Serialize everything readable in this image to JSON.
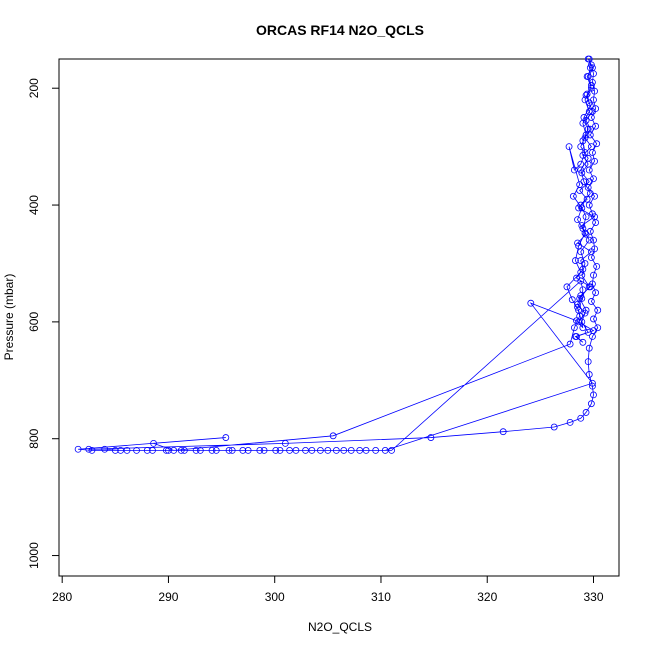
{
  "chart_data": {
    "type": "scatter",
    "title": "ORCAS RF14 N2O_QCLS",
    "xlabel": "N2O_QCLS",
    "ylabel": "Pressure (mbar)",
    "xlim": [
      279.7,
      332.4
    ],
    "ylim": [
      1035,
      150
    ],
    "y_reversed": true,
    "x_ticks": [
      280,
      290,
      300,
      310,
      320,
      330
    ],
    "y_ticks": [
      200,
      400,
      600,
      800,
      1000
    ],
    "grid": false,
    "legend": "none",
    "series_color": "#0000ff",
    "marker": "open-circle",
    "connected": true,
    "points": [
      [
        329.6,
        150
      ],
      [
        329.7,
        165
      ],
      [
        329.5,
        180
      ],
      [
        329.8,
        195
      ],
      [
        329.4,
        210
      ],
      [
        329.6,
        225
      ],
      [
        329.9,
        240
      ],
      [
        329.3,
        255
      ],
      [
        329.7,
        270
      ],
      [
        329.2,
        285
      ],
      [
        329.8,
        300
      ],
      [
        329.0,
        315
      ],
      [
        329.5,
        330
      ],
      [
        328.9,
        345
      ],
      [
        329.6,
        360
      ],
      [
        328.7,
        375
      ],
      [
        329.4,
        390
      ],
      [
        328.6,
        405
      ],
      [
        330.1,
        420
      ],
      [
        328.9,
        435
      ],
      [
        329.3,
        450
      ],
      [
        328.5,
        465
      ],
      [
        329.8,
        480
      ],
      [
        328.8,
        495
      ],
      [
        329.0,
        510
      ],
      [
        328.4,
        525
      ],
      [
        329.7,
        540
      ],
      [
        328.8,
        555
      ],
      [
        328.5,
        570
      ],
      [
        329.2,
        585
      ],
      [
        328.6,
        600
      ],
      [
        330.0,
        615
      ],
      [
        328.4,
        625
      ],
      [
        329.0,
        635
      ],
      [
        328.3,
        625
      ],
      [
        329.5,
        618
      ],
      [
        328.9,
        600
      ],
      [
        329.3,
        580
      ],
      [
        328.7,
        560
      ],
      [
        329.6,
        540
      ],
      [
        328.9,
        520
      ],
      [
        329.2,
        500
      ],
      [
        328.8,
        480
      ],
      [
        329.6,
        460
      ],
      [
        329.0,
        440
      ],
      [
        329.3,
        420
      ],
      [
        328.8,
        400
      ],
      [
        329.7,
        380
      ],
      [
        329.1,
        360
      ],
      [
        328.8,
        340
      ],
      [
        329.5,
        320
      ],
      [
        328.8,
        300
      ],
      [
        329.3,
        280
      ],
      [
        329.0,
        260
      ],
      [
        329.6,
        240
      ],
      [
        329.2,
        220
      ],
      [
        329.8,
        200
      ],
      [
        329.4,
        180
      ],
      [
        329.9,
        165
      ],
      [
        329.5,
        150
      ],
      [
        329.8,
        160
      ],
      [
        330.0,
        175
      ],
      [
        329.9,
        190
      ],
      [
        330.1,
        205
      ],
      [
        330.0,
        220
      ],
      [
        330.2,
        235
      ],
      [
        329.8,
        250
      ],
      [
        330.2,
        265
      ],
      [
        329.7,
        280
      ],
      [
        330.3,
        295
      ],
      [
        329.9,
        310
      ],
      [
        330.1,
        325
      ],
      [
        329.6,
        340
      ],
      [
        330.0,
        355
      ],
      [
        329.5,
        370
      ],
      [
        330.1,
        385
      ],
      [
        329.6,
        400
      ],
      [
        329.9,
        415
      ],
      [
        330.2,
        430
      ],
      [
        329.7,
        445
      ],
      [
        330.0,
        460
      ],
      [
        330.1,
        475
      ],
      [
        329.8,
        490
      ],
      [
        330.3,
        505
      ],
      [
        330.0,
        520
      ],
      [
        329.9,
        535
      ],
      [
        330.2,
        550
      ],
      [
        329.8,
        565
      ],
      [
        330.4,
        580
      ],
      [
        330.0,
        595
      ],
      [
        330.4,
        610
      ],
      [
        329.9,
        625
      ],
      [
        329.6,
        645
      ],
      [
        329.5,
        668
      ],
      [
        329.6,
        690
      ],
      [
        329.9,
        710
      ],
      [
        330.0,
        725
      ],
      [
        329.8,
        740
      ],
      [
        329.3,
        755
      ],
      [
        328.8,
        765
      ],
      [
        327.8,
        772
      ],
      [
        326.3,
        780
      ],
      [
        321.5,
        788
      ],
      [
        314.7,
        798
      ],
      [
        301.0,
        808
      ],
      [
        282.5,
        818
      ],
      [
        284.0,
        818
      ],
      [
        285.5,
        820
      ],
      [
        287.0,
        820
      ],
      [
        288.5,
        820
      ],
      [
        290.0,
        820
      ],
      [
        291.5,
        820
      ],
      [
        293.0,
        820
      ],
      [
        294.5,
        820
      ],
      [
        296.0,
        820
      ],
      [
        297.5,
        820
      ],
      [
        299.0,
        820
      ],
      [
        300.5,
        820
      ],
      [
        302.0,
        820
      ],
      [
        303.5,
        820
      ],
      [
        305.0,
        820
      ],
      [
        306.5,
        820
      ],
      [
        308.0,
        820
      ],
      [
        309.5,
        820
      ],
      [
        311.0,
        820
      ],
      [
        328.8,
        530
      ],
      [
        329.0,
        545
      ],
      [
        328.9,
        560
      ],
      [
        328.5,
        575
      ],
      [
        328.7,
        590
      ],
      [
        328.2,
        610
      ],
      [
        327.8,
        638
      ],
      [
        305.5,
        795
      ],
      [
        290.5,
        820
      ],
      [
        288.6,
        808
      ],
      [
        295.4,
        798
      ],
      [
        281.5,
        818
      ],
      [
        282.8,
        820
      ],
      [
        285.0,
        820
      ],
      [
        286.1,
        820
      ],
      [
        288.0,
        820
      ],
      [
        289.8,
        820
      ],
      [
        291.2,
        820
      ],
      [
        292.6,
        820
      ],
      [
        294.1,
        820
      ],
      [
        295.7,
        820
      ],
      [
        297.0,
        820
      ],
      [
        298.6,
        820
      ],
      [
        300.1,
        820
      ],
      [
        301.4,
        820
      ],
      [
        302.9,
        820
      ],
      [
        304.3,
        820
      ],
      [
        305.8,
        820
      ],
      [
        307.2,
        820
      ],
      [
        308.6,
        820
      ],
      [
        310.4,
        820
      ],
      [
        329.9,
        705
      ],
      [
        324.1,
        568
      ],
      [
        328.4,
        598
      ],
      [
        329.0,
        610
      ],
      [
        328.6,
        580
      ],
      [
        328.0,
        562
      ],
      [
        327.5,
        540
      ],
      [
        328.8,
        515
      ],
      [
        328.3,
        495
      ],
      [
        328.6,
        470
      ],
      [
        329.2,
        448
      ],
      [
        328.5,
        425
      ],
      [
        328.9,
        405
      ],
      [
        328.1,
        385
      ],
      [
        328.7,
        365
      ],
      [
        327.7,
        300
      ],
      [
        328.2,
        340
      ],
      [
        328.8,
        330
      ],
      [
        329.2,
        310
      ],
      [
        329.0,
        290
      ],
      [
        329.5,
        270
      ],
      [
        329.1,
        250
      ],
      [
        329.7,
        230
      ],
      [
        329.3,
        212
      ]
    ]
  }
}
